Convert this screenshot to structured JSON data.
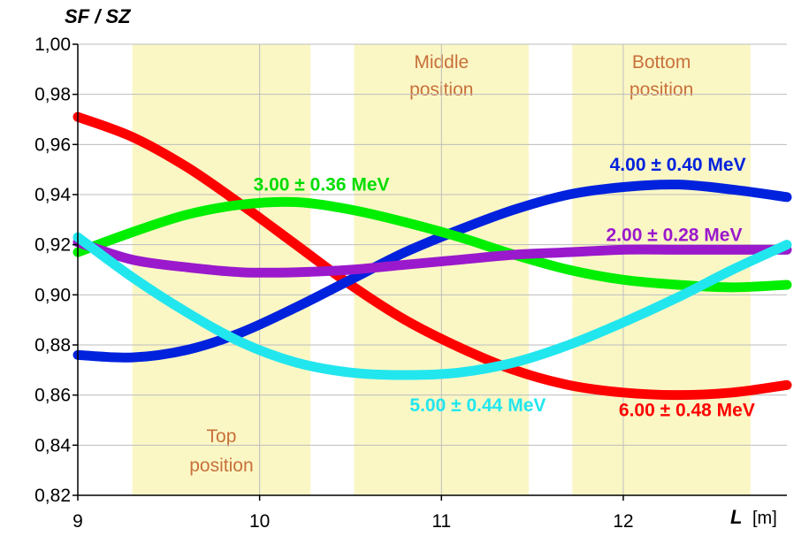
{
  "chart_data": {
    "type": "line",
    "ylabel": "SF / SZ",
    "xlabel": "L",
    "xunit": "[m]",
    "xlim": [
      9,
      12.9
    ],
    "ylim": [
      0.82,
      1.0
    ],
    "xticks": [
      "9",
      "10",
      "11",
      "12"
    ],
    "yticks": [
      "0,82",
      "0,84",
      "0,86",
      "0,88",
      "0,90",
      "0,92",
      "0,94",
      "0,96",
      "0,98",
      "1,00"
    ],
    "grid": true,
    "regions": [
      {
        "label": [
          "Top",
          "position"
        ],
        "x0": 9.3,
        "x1": 10.28,
        "color": "#fbf7c5"
      },
      {
        "label": [
          "Middle",
          "position"
        ],
        "x0": 10.52,
        "x1": 11.48,
        "color": "#fbf7c5"
      },
      {
        "label": [
          "Bottom",
          "position"
        ],
        "x0": 11.72,
        "x1": 12.7,
        "color": "#fbf7c5"
      }
    ],
    "series": [
      {
        "name": "6.00 ± 0.48 MeV",
        "color": "#ff0000",
        "x": [
          9,
          9.3,
          9.6,
          9.9,
          10.2,
          10.5,
          10.8,
          11.1,
          11.4,
          11.7,
          12.0,
          12.3,
          12.6,
          12.9
        ],
        "y": [
          0.971,
          0.963,
          0.951,
          0.936,
          0.92,
          0.904,
          0.89,
          0.879,
          0.87,
          0.864,
          0.861,
          0.86,
          0.861,
          0.864
        ]
      },
      {
        "name": "4.00 ± 0.40 MeV",
        "color": "#0022dd",
        "x": [
          9,
          9.3,
          9.6,
          9.9,
          10.2,
          10.5,
          10.8,
          11.1,
          11.4,
          11.7,
          12.0,
          12.3,
          12.6,
          12.9
        ],
        "y": [
          0.876,
          0.875,
          0.878,
          0.885,
          0.895,
          0.906,
          0.917,
          0.926,
          0.934,
          0.94,
          0.943,
          0.944,
          0.942,
          0.939
        ]
      },
      {
        "name": "3.00 ± 0.36 MeV",
        "color": "#00ee00",
        "x": [
          9,
          9.3,
          9.6,
          9.9,
          10.2,
          10.5,
          10.8,
          11.1,
          11.4,
          11.7,
          12.0,
          12.3,
          12.6,
          12.9
        ],
        "y": [
          0.917,
          0.925,
          0.932,
          0.936,
          0.937,
          0.934,
          0.929,
          0.923,
          0.916,
          0.91,
          0.906,
          0.904,
          0.903,
          0.904
        ]
      },
      {
        "name": "2.00 ± 0.28 MeV",
        "color": "#9a19cc",
        "x": [
          9,
          9.3,
          9.6,
          9.9,
          10.2,
          10.5,
          10.8,
          11.1,
          11.4,
          11.7,
          12.0,
          12.3,
          12.6,
          12.9
        ],
        "y": [
          0.921,
          0.914,
          0.911,
          0.909,
          0.909,
          0.91,
          0.912,
          0.914,
          0.916,
          0.917,
          0.918,
          0.918,
          0.918,
          0.918
        ]
      },
      {
        "name": "5.00 ± 0.44 MeV",
        "color": "#22e6ee",
        "x": [
          9,
          9.3,
          9.6,
          9.9,
          10.2,
          10.5,
          10.8,
          11.1,
          11.4,
          11.7,
          12.0,
          12.3,
          12.6,
          12.9
        ],
        "y": [
          0.923,
          0.907,
          0.893,
          0.881,
          0.873,
          0.869,
          0.868,
          0.869,
          0.873,
          0.88,
          0.889,
          0.899,
          0.91,
          0.92
        ]
      }
    ],
    "series_labels": [
      {
        "text": "6.00 ± 0.48 MeV",
        "color": "#ff0000",
        "at": [
          12.35,
          0.854
        ]
      },
      {
        "text": "4.00 ± 0.40 MeV",
        "color": "#0022dd",
        "at": [
          12.3,
          0.952
        ]
      },
      {
        "text": "3.00 ± 0.36 MeV",
        "color": "#00dd00",
        "at": [
          10.34,
          0.944
        ]
      },
      {
        "text": "2.00 ± 0.28 MeV",
        "color": "#9a19cc",
        "at": [
          12.28,
          0.924
        ]
      },
      {
        "text": "5.00 ± 0.44 MeV",
        "color": "#22e6ee",
        "at": [
          11.2,
          0.856
        ]
      }
    ]
  }
}
